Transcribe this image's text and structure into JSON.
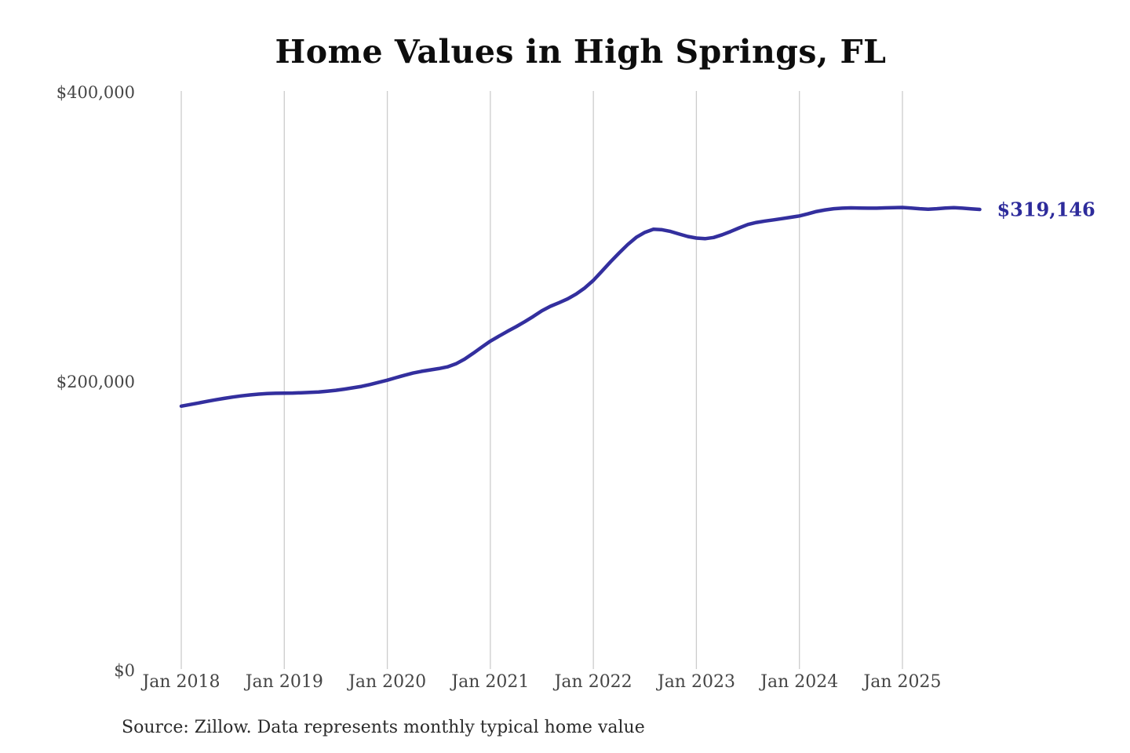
{
  "chart": {
    "title": "Home Values in High Springs, FL",
    "end_label": "$319,146",
    "source_note": "Source: Zillow. Data represents monthly typical home value",
    "colors": {
      "line": "#332f9e",
      "end_label": "#2d2b9b",
      "gridline": "#cccccc",
      "axis_text": "#454545"
    },
    "y_axis": {
      "ticks": [
        {
          "label": "$400,000",
          "value": 400000
        },
        {
          "label": "$200,000",
          "value": 200000
        },
        {
          "label": "$0",
          "value": 0
        }
      ]
    },
    "x_axis": {
      "ticks": [
        {
          "label": "Jan 2018",
          "month_index": 0
        },
        {
          "label": "Jan 2019",
          "month_index": 12
        },
        {
          "label": "Jan 2020",
          "month_index": 24
        },
        {
          "label": "Jan 2021",
          "month_index": 36
        },
        {
          "label": "Jan 2022",
          "month_index": 48
        },
        {
          "label": "Jan 2023",
          "month_index": 60
        },
        {
          "label": "Jan 2024",
          "month_index": 72
        },
        {
          "label": "Jan 2025",
          "month_index": 84
        }
      ]
    }
  },
  "chart_data": {
    "type": "line",
    "title": "Home Values in High Springs, FL",
    "series_name": "Typical home value (monthly, Zillow)",
    "x_start": "2018-01",
    "x_end": "2025-10",
    "x_frequency": "monthly",
    "ylim": [
      0,
      400000
    ],
    "grid": "vertical-only",
    "final_value": 319146,
    "values": [
      183000,
      184100,
      185200,
      186300,
      187400,
      188400,
      189300,
      190100,
      190800,
      191300,
      191700,
      191900,
      192000,
      192100,
      192300,
      192500,
      192800,
      193300,
      194000,
      194800,
      195700,
      196700,
      198000,
      199500,
      201000,
      202700,
      204400,
      205900,
      207100,
      208100,
      209000,
      210200,
      212300,
      215500,
      219600,
      223800,
      228000,
      231400,
      234800,
      238000,
      241400,
      245100,
      249000,
      252100,
      254600,
      257200,
      260600,
      264800,
      270000,
      276400,
      282900,
      289000,
      294800,
      299800,
      303300,
      305400,
      305100,
      303900,
      302100,
      300400,
      299300,
      298900,
      299700,
      301600,
      303900,
      306400,
      308700,
      310100,
      311100,
      311900,
      312800,
      313700,
      314600,
      316100,
      317700,
      318800,
      319600,
      320000,
      320200,
      320100,
      320000,
      320000,
      320200,
      320400,
      320500,
      320100,
      319600,
      319300,
      319600,
      320100,
      320400,
      320000,
      319500,
      319146
    ]
  }
}
